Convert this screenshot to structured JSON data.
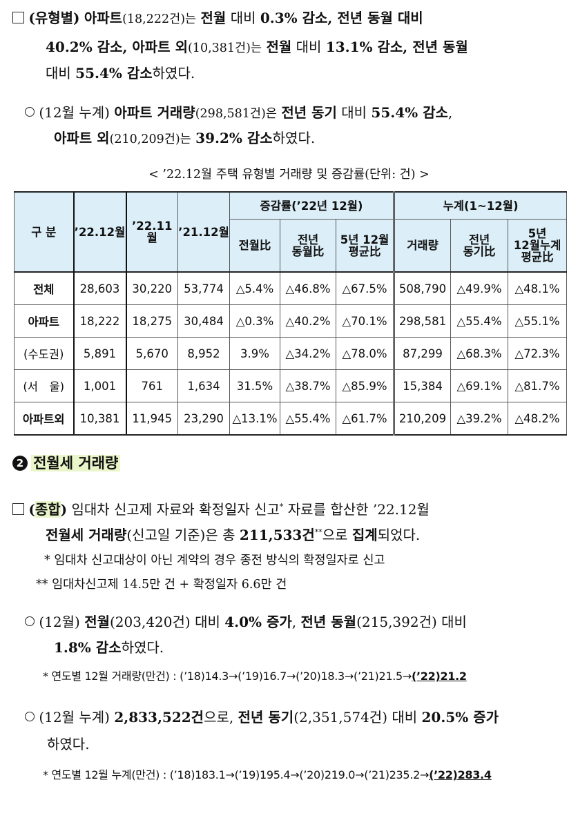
{
  "para1": {
    "bullet": "(유형별)",
    "l1a": "아파트",
    "l1b": "(18,222건)는",
    "l1c": "전월",
    "l1d": "대비",
    "l1e": "0.3% 감소",
    "l1f": ", 전년 동월 대비",
    "l2a": "40.2% 감소",
    "l2b": ", 아파트 외",
    "l2c": "(10,381건)는",
    "l2d": "전월",
    "l2e": "대비",
    "l2f": "13.1% 감소",
    "l2g": ", 전년 동월",
    "l3a": "대비",
    "l3b": "55.4% 감소",
    "l3c": "하였다."
  },
  "para2": {
    "l1a": "(12월 누계)",
    "l1b": "아파트 거래량",
    "l1c": "(298,581건)은",
    "l1d": "전년 동기",
    "l1e": "대비",
    "l1f": "55.4% 감소",
    "l1g": ",",
    "l2a": "아파트 외",
    "l2b": "(210,209건)는",
    "l2c": "39.2% 감소",
    "l2d": "하였다."
  },
  "table": {
    "caption": "< ’22.12월 주택 유형별 거래량 및 증감률(단위: 건) >",
    "h_gubun": "구 분",
    "h_c1": "’22.12월",
    "h_c2": "’22.11월",
    "h_c3": "’21.12월",
    "h_group1": "증감률(’22년 12월)",
    "h_group2": "누계(1~12월)",
    "h_g1a": "전월比",
    "h_g1b_1": "전년",
    "h_g1b_2": "동월比",
    "h_g1c_1": "5년 12월",
    "h_g1c_2": "평균比",
    "h_g2a": "거래량",
    "h_g2b_1": "전년",
    "h_g2b_2": "동기比",
    "h_g2c_1": "5년",
    "h_g2c_2": "12월누계",
    "h_g2c_3": "평균比",
    "rows": [
      {
        "label": "전체",
        "c": [
          "28,603",
          "30,220",
          "53,774",
          "△5.4%",
          "△46.8%",
          "△67.5%",
          "508,790",
          "△49.9%",
          "△48.1%"
        ]
      },
      {
        "label": "아파트",
        "c": [
          "18,222",
          "18,275",
          "30,484",
          "△0.3%",
          "△40.2%",
          "△70.1%",
          "298,581",
          "△55.4%",
          "△55.1%"
        ]
      },
      {
        "label": "(수도권)",
        "c": [
          "5,891",
          "5,670",
          "8,952",
          "3.9%",
          "△34.2%",
          "△78.0%",
          "87,299",
          "△68.3%",
          "△72.3%"
        ]
      },
      {
        "label": "(서　울)",
        "c": [
          "1,001",
          "761",
          "1,634",
          "31.5%",
          "△38.7%",
          "△85.9%",
          "15,384",
          "△69.1%",
          "△81.7%"
        ]
      },
      {
        "label": "아파트외",
        "c": [
          "10,381",
          "11,945",
          "23,290",
          "△13.1%",
          "△55.4%",
          "△61.7%",
          "210,209",
          "△39.2%",
          "△48.2%"
        ]
      }
    ]
  },
  "section2": {
    "number": "2",
    "title": "전월세 거래량"
  },
  "para3": {
    "l1a": "(",
    "l1b": "종합",
    "l1c": ")",
    "l1d": "임대차 신고제 자료와 확정일자 신고",
    "l1e": "*",
    "l1f": "자료를 합산한 ’22.12월",
    "l2a": "전월세 거래량",
    "l2b": "(신고일 기준)은 총",
    "l2c": "211,533건",
    "l2d": "**",
    "l2e": "으로",
    "l2f": "집계",
    "l2g": "되었다.",
    "note1": "* 임대차 신고대상이 아닌 계약의 경우 종전 방식의 확정일자로 신고",
    "note2": "** 임대차신고제 14.5만 건 + 확정일자 6.6만 건"
  },
  "para4": {
    "l1a": "(12월)",
    "l1b": "전월",
    "l1c": "(203,420건) 대비",
    "l1d": "4.0% 증가",
    "l1e": ",",
    "l1f": "전년 동월",
    "l1g": "(215,392건) 대비",
    "l2a": "1.8% 감소",
    "l2b": "하였다.",
    "note": "* 연도별 12월 거래량(만건) : (’18)14.3→(’19)16.7→(’20)18.3→(’21)21.5→",
    "note_last": "(’22)21.2"
  },
  "para5": {
    "l1a": "(12월 누계)",
    "l1b": "2,833,522건",
    "l1c": "으로,",
    "l1d": "전년 동기",
    "l1e": "(2,351,574건) 대비",
    "l1f": "20.5% 증가",
    "l2": "하였다.",
    "note": "* 연도별 12월 누계(만건) : (’18)183.1→(’19)195.4→(’20)219.0→(’21)235.2→",
    "note_last": "(’22)283.4"
  }
}
